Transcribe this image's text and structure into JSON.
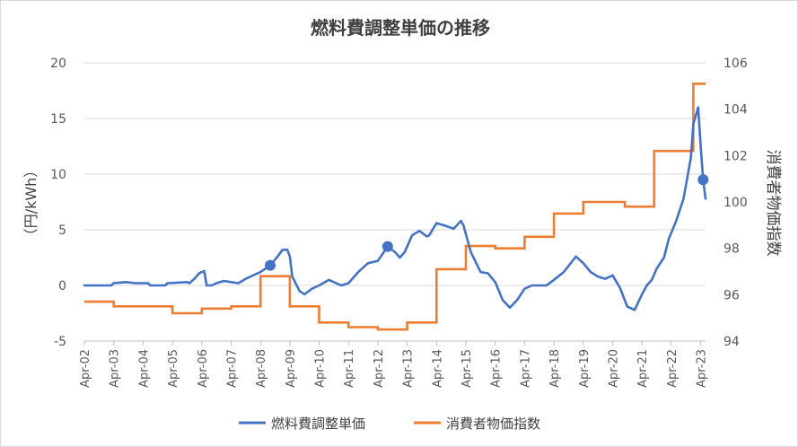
{
  "chart_data": {
    "type": "line",
    "title": "燃料費調整単価の推移",
    "ylabel_left": "（円/kWh）",
    "ylabel_right": "消費者物価指数",
    "x_tick_labels": [
      "Apr-02",
      "Apr-03",
      "Apr-04",
      "Apr-05",
      "Apr-06",
      "Apr-07",
      "Apr-08",
      "Apr-09",
      "Apr-10",
      "Apr-11",
      "Apr-12",
      "Apr-13",
      "Apr-14",
      "Apr-15",
      "Apr-16",
      "Apr-17",
      "Apr-18",
      "Apr-19",
      "Apr-20",
      "Apr-21",
      "Apr-22",
      "Apr-23"
    ],
    "x_range": [
      "2002-04",
      "2023-06"
    ],
    "y_left_range": [
      -5,
      20
    ],
    "y_left_ticks": [
      "-5",
      "0",
      "5",
      "10",
      "15",
      "20"
    ],
    "y_right_range": [
      94,
      106
    ],
    "y_right_ticks": [
      "94",
      "96",
      "98",
      "100",
      "102",
      "104",
      "106"
    ],
    "grid": "horizontal",
    "legend_position": "bottom",
    "series": [
      {
        "name": "燃料費調整単価",
        "axis": "left",
        "color": "#4472c4",
        "marker_dates": [
          "2008-08",
          "2012-08",
          "2023-05"
        ],
        "points": [
          [
            "2002-04",
            0.0
          ],
          [
            "2003-03",
            0.0
          ],
          [
            "2003-04",
            0.2
          ],
          [
            "2003-09",
            0.3
          ],
          [
            "2004-01",
            0.2
          ],
          [
            "2004-06",
            0.2
          ],
          [
            "2004-07",
            0.0
          ],
          [
            "2005-01",
            0.0
          ],
          [
            "2005-02",
            0.2
          ],
          [
            "2005-10",
            0.3
          ],
          [
            "2005-11",
            0.2
          ],
          [
            "2006-01",
            0.6
          ],
          [
            "2006-03",
            1.1
          ],
          [
            "2006-04",
            1.2
          ],
          [
            "2006-05",
            1.3
          ],
          [
            "2006-06",
            0.0
          ],
          [
            "2006-08",
            0.0
          ],
          [
            "2006-10",
            0.2
          ],
          [
            "2007-01",
            0.4
          ],
          [
            "2007-04",
            0.3
          ],
          [
            "2007-07",
            0.2
          ],
          [
            "2007-10",
            0.6
          ],
          [
            "2008-01",
            0.9
          ],
          [
            "2008-04",
            1.2
          ],
          [
            "2008-08",
            1.8
          ],
          [
            "2008-11",
            2.6
          ],
          [
            "2009-01",
            3.2
          ],
          [
            "2009-03",
            3.2
          ],
          [
            "2009-04",
            2.6
          ],
          [
            "2009-05",
            0.8
          ],
          [
            "2009-08",
            -0.5
          ],
          [
            "2009-10",
            -0.8
          ],
          [
            "2010-01",
            -0.3
          ],
          [
            "2010-04",
            0.0
          ],
          [
            "2010-08",
            0.5
          ],
          [
            "2011-01",
            0.0
          ],
          [
            "2011-04",
            0.2
          ],
          [
            "2011-08",
            1.2
          ],
          [
            "2011-12",
            2.0
          ],
          [
            "2012-04",
            2.2
          ],
          [
            "2012-08",
            3.5
          ],
          [
            "2012-11",
            3.0
          ],
          [
            "2013-01",
            2.5
          ],
          [
            "2013-03",
            3.0
          ],
          [
            "2013-06",
            4.5
          ],
          [
            "2013-09",
            4.9
          ],
          [
            "2013-12",
            4.4
          ],
          [
            "2014-01",
            4.5
          ],
          [
            "2014-04",
            5.6
          ],
          [
            "2014-07",
            5.4
          ],
          [
            "2014-11",
            5.1
          ],
          [
            "2015-02",
            5.8
          ],
          [
            "2015-03",
            5.4
          ],
          [
            "2015-06",
            3.0
          ],
          [
            "2015-10",
            1.2
          ],
          [
            "2016-01",
            1.1
          ],
          [
            "2016-04",
            0.3
          ],
          [
            "2016-07",
            -1.3
          ],
          [
            "2016-10",
            -2.0
          ],
          [
            "2017-01",
            -1.3
          ],
          [
            "2017-04",
            -0.3
          ],
          [
            "2017-07",
            0.0
          ],
          [
            "2018-01",
            0.0
          ],
          [
            "2018-04",
            0.5
          ],
          [
            "2018-08",
            1.2
          ],
          [
            "2019-01",
            2.6
          ],
          [
            "2019-04",
            2.0
          ],
          [
            "2019-07",
            1.2
          ],
          [
            "2019-10",
            0.8
          ],
          [
            "2020-01",
            0.6
          ],
          [
            "2020-04",
            0.9
          ],
          [
            "2020-07",
            -0.2
          ],
          [
            "2020-10",
            -1.9
          ],
          [
            "2021-01",
            -2.2
          ],
          [
            "2021-04",
            -0.8
          ],
          [
            "2021-06",
            0.0
          ],
          [
            "2021-08",
            0.5
          ],
          [
            "2021-10",
            1.5
          ],
          [
            "2022-01",
            2.5
          ],
          [
            "2022-03",
            4.2
          ],
          [
            "2022-06",
            5.8
          ],
          [
            "2022-09",
            7.8
          ],
          [
            "2022-12",
            11.5
          ],
          [
            "2023-01",
            14.5
          ],
          [
            "2023-03",
            16.0
          ],
          [
            "2023-04",
            12.5
          ],
          [
            "2023-05",
            9.5
          ],
          [
            "2023-06",
            7.8
          ]
        ]
      },
      {
        "name": "消費者物価指数",
        "axis": "right",
        "color": "#ed7d31",
        "step": true,
        "points": [
          [
            "2002-04",
            95.7
          ],
          [
            "2003-04",
            95.5
          ],
          [
            "2005-04",
            95.2
          ],
          [
            "2006-04",
            95.4
          ],
          [
            "2007-04",
            95.5
          ],
          [
            "2008-04",
            96.8
          ],
          [
            "2009-04",
            95.5
          ],
          [
            "2010-04",
            94.8
          ],
          [
            "2011-04",
            94.6
          ],
          [
            "2012-04",
            94.5
          ],
          [
            "2013-04",
            94.8
          ],
          [
            "2014-04",
            97.1
          ],
          [
            "2015-04",
            98.1
          ],
          [
            "2016-04",
            98.0
          ],
          [
            "2017-04",
            98.5
          ],
          [
            "2018-04",
            99.5
          ],
          [
            "2019-04",
            100.0
          ],
          [
            "2020-09",
            99.8
          ],
          [
            "2021-09",
            102.2
          ],
          [
            "2022-09",
            102.2
          ],
          [
            "2023-01",
            105.1
          ],
          [
            "2023-06",
            105.1
          ]
        ]
      }
    ]
  }
}
